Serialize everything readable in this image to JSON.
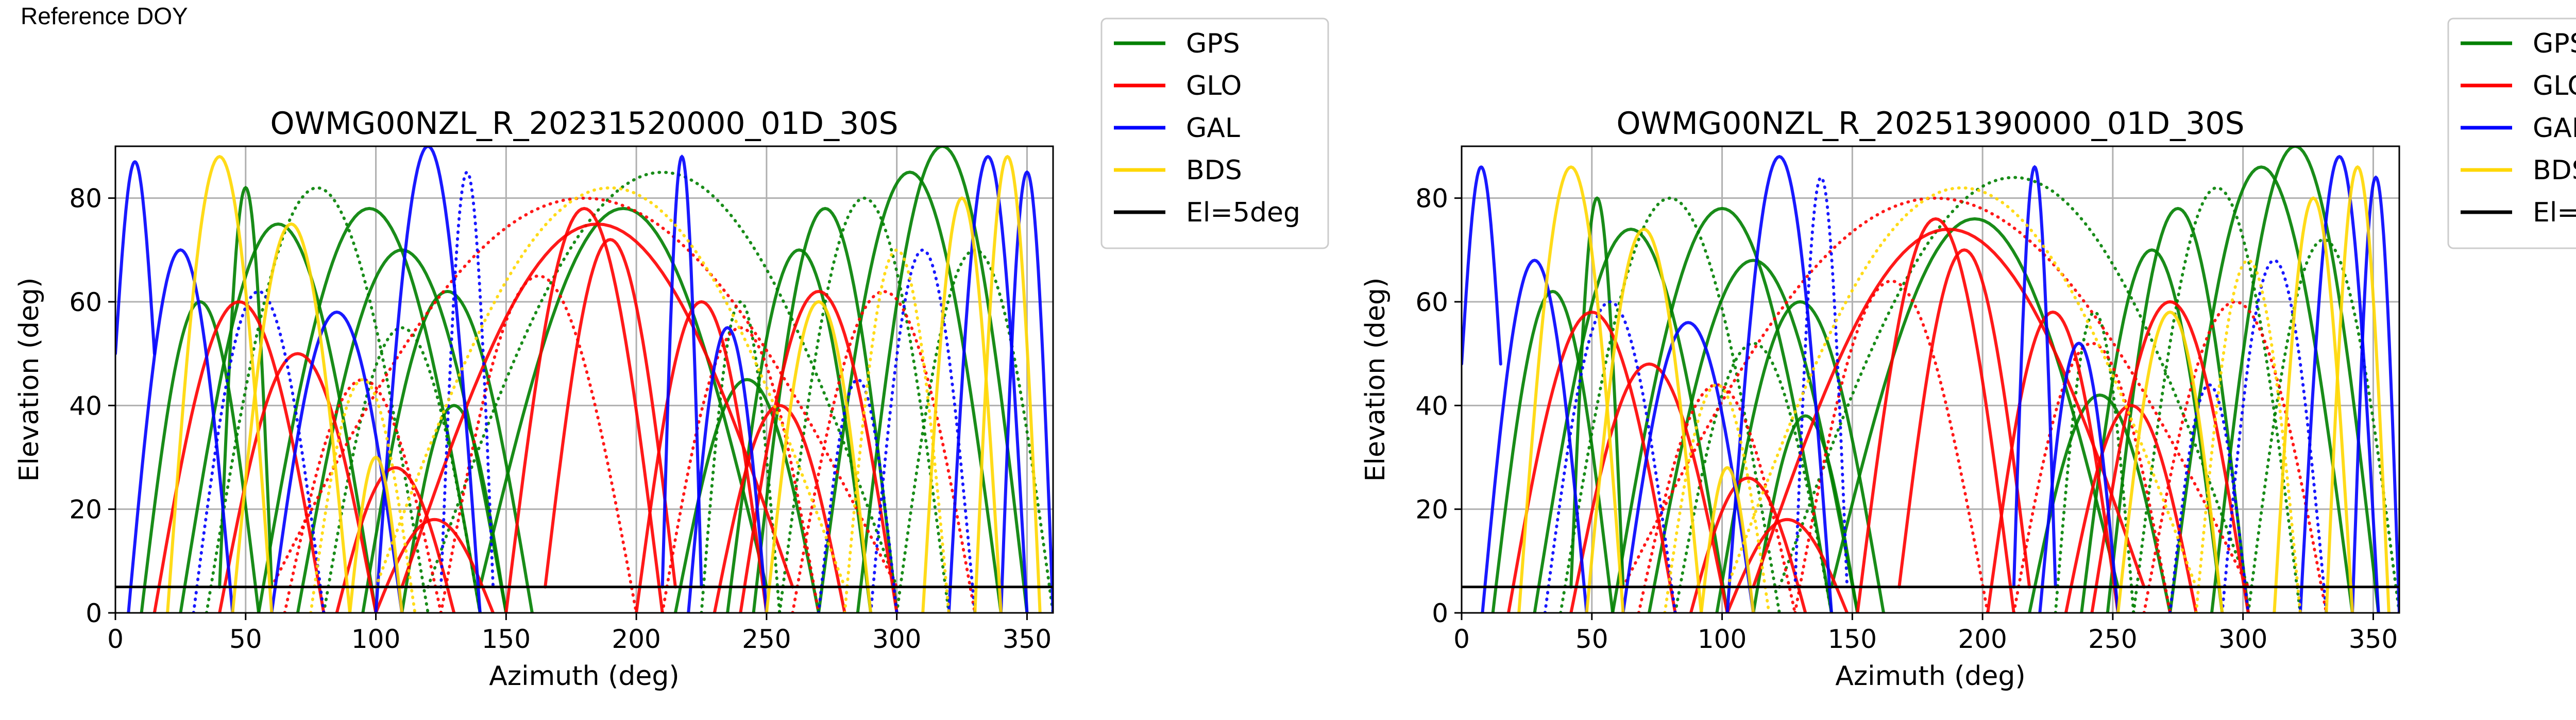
{
  "page": {
    "header": "Reference DOY"
  },
  "legend": {
    "entries": [
      {
        "label": "GPS",
        "color": "#008000"
      },
      {
        "label": "GLO",
        "color": "#ff0000"
      },
      {
        "label": "GAL",
        "color": "#0000ff"
      },
      {
        "label": "BDS",
        "color": "#ffd700"
      },
      {
        "label": "El=5deg",
        "color": "#000000"
      }
    ]
  },
  "chart_data": [
    {
      "type": "scatter",
      "title": "OWMG00NZL_R_20231520000_01D_30S",
      "xlabel": "Azimuth (deg)",
      "ylabel": "Elevation (deg)",
      "xlim": [
        0,
        360
      ],
      "ylim": [
        0,
        90
      ],
      "xticks": [
        0,
        50,
        100,
        150,
        200,
        250,
        300,
        350
      ],
      "yticks": [
        0,
        20,
        40,
        60,
        80
      ],
      "grid": true,
      "legend_position": "outside-right",
      "reference_line": {
        "label": "El=5deg",
        "y": 5
      },
      "series": [
        {
          "name": "GPS",
          "color": "#008000",
          "tracks": [
            [
              10,
              0,
              55,
              60
            ],
            [
              25,
              0,
              100,
              75
            ],
            [
              35,
              0,
              120,
              82
            ],
            [
              55,
              0,
              140,
              78
            ],
            [
              70,
              0,
              150,
              70
            ],
            [
              80,
              0,
              140,
              55
            ],
            [
              95,
              0,
              160,
              62
            ],
            [
              110,
              0,
              150,
              40
            ],
            [
              225,
              0,
              255,
              60
            ],
            [
              235,
              0,
              290,
              70
            ],
            [
              245,
              0,
              300,
              78
            ],
            [
              255,
              0,
              320,
              80
            ],
            [
              270,
              0,
              340,
              85
            ],
            [
              285,
              0,
              350,
              90
            ],
            [
              300,
              0,
              360,
              70
            ],
            [
              215,
              0,
              270,
              45
            ],
            [
              140,
              5,
              250,
              78
            ],
            [
              120,
              5,
              300,
              85
            ],
            [
              40,
              5,
              60,
              82
            ]
          ]
        },
        {
          "name": "GLO",
          "color": "#ff0000",
          "tracks": [
            [
              15,
              0,
              80,
              60
            ],
            [
              40,
              0,
              100,
              50
            ],
            [
              65,
              0,
              125,
              45
            ],
            [
              85,
              0,
              130,
              28
            ],
            [
              100,
              0,
              145,
              18
            ],
            [
              125,
              0,
              200,
              65
            ],
            [
              150,
              0,
              210,
              78
            ],
            [
              200,
              0,
              250,
              60
            ],
            [
              210,
              0,
              270,
              55
            ],
            [
              230,
              0,
              280,
              40
            ],
            [
              240,
              0,
              300,
              62
            ],
            [
              260,
              0,
              330,
              62
            ],
            [
              165,
              5,
              215,
              72
            ],
            [
              110,
              5,
              260,
              75
            ],
            [
              60,
              5,
              300,
              80
            ]
          ]
        },
        {
          "name": "GAL",
          "color": "#0000ff",
          "tracks": [
            [
              0,
              50,
              15,
              87
            ],
            [
              5,
              0,
              45,
              70
            ],
            [
              30,
              0,
              80,
              62
            ],
            [
              60,
              0,
              110,
              58
            ],
            [
              100,
              0,
              140,
              90
            ],
            [
              125,
              5,
              145,
              85
            ],
            [
              210,
              5,
              225,
              88
            ],
            [
              220,
              0,
              250,
              55
            ],
            [
              270,
              0,
              300,
              45
            ],
            [
              320,
              0,
              350,
              88
            ],
            [
              340,
              0,
              360,
              85
            ],
            [
              290,
              0,
              330,
              70
            ]
          ]
        },
        {
          "name": "BDS",
          "color": "#ffd700",
          "tracks": [
            [
              20,
              0,
              60,
              88
            ],
            [
              45,
              0,
              90,
              75
            ],
            [
              75,
              0,
              115,
              45
            ],
            [
              90,
              0,
              110,
              30
            ],
            [
              250,
              0,
              290,
              60
            ],
            [
              280,
              0,
              320,
              70
            ],
            [
              310,
              0,
              340,
              80
            ],
            [
              330,
              0,
              355,
              88
            ],
            [
              100,
              5,
              280,
              82
            ]
          ]
        }
      ]
    },
    {
      "type": "scatter",
      "title": "OWMG00NZL_R_20251390000_01D_30S",
      "xlabel": "Azimuth (deg)",
      "ylabel": "Elevation (deg)",
      "xlim": [
        0,
        360
      ],
      "ylim": [
        0,
        90
      ],
      "xticks": [
        0,
        50,
        100,
        150,
        200,
        250,
        300,
        350
      ],
      "yticks": [
        0,
        20,
        40,
        60,
        80
      ],
      "grid": true,
      "legend_position": "outside-right",
      "reference_line": {
        "label": "El=5deg",
        "y": 5
      },
      "series": [
        {
          "name": "GPS",
          "color": "#008000",
          "tracks": [
            [
              12,
              0,
              58,
              62
            ],
            [
              28,
              0,
              102,
              74
            ],
            [
              38,
              0,
              122,
              80
            ],
            [
              58,
              0,
              142,
              78
            ],
            [
              72,
              0,
              152,
              68
            ],
            [
              82,
              0,
              142,
              52
            ],
            [
              98,
              0,
              162,
              60
            ],
            [
              112,
              0,
              152,
              38
            ],
            [
              228,
              0,
              258,
              58
            ],
            [
              238,
              0,
              292,
              70
            ],
            [
              248,
              0,
              302,
              78
            ],
            [
              258,
              0,
              322,
              82
            ],
            [
              272,
              0,
              342,
              86
            ],
            [
              288,
              0,
              352,
              90
            ],
            [
              302,
              0,
              360,
              72
            ],
            [
              218,
              0,
              272,
              42
            ],
            [
              142,
              5,
              252,
              76
            ],
            [
              122,
              5,
              302,
              84
            ],
            [
              42,
              5,
              62,
              80
            ]
          ]
        },
        {
          "name": "GLO",
          "color": "#ff0000",
          "tracks": [
            [
              18,
              0,
              82,
              58
            ],
            [
              42,
              0,
              102,
              48
            ],
            [
              68,
              0,
              128,
              44
            ],
            [
              88,
              0,
              132,
              26
            ],
            [
              102,
              0,
              148,
              18
            ],
            [
              128,
              0,
              202,
              64
            ],
            [
              152,
              0,
              212,
              76
            ],
            [
              202,
              0,
              252,
              58
            ],
            [
              212,
              0,
              272,
              52
            ],
            [
              232,
              0,
              282,
              40
            ],
            [
              242,
              0,
              302,
              60
            ],
            [
              262,
              0,
              332,
              60
            ],
            [
              168,
              5,
              218,
              70
            ],
            [
              112,
              5,
              262,
              74
            ],
            [
              62,
              5,
              302,
              80
            ]
          ]
        },
        {
          "name": "GAL",
          "color": "#0000ff",
          "tracks": [
            [
              0,
              48,
              15,
              86
            ],
            [
              8,
              0,
              48,
              68
            ],
            [
              32,
              0,
              82,
              60
            ],
            [
              62,
              0,
              112,
              56
            ],
            [
              102,
              0,
              142,
              88
            ],
            [
              128,
              5,
              148,
              84
            ],
            [
              212,
              5,
              228,
              86
            ],
            [
              222,
              0,
              252,
              52
            ],
            [
              272,
              0,
              302,
              44
            ],
            [
              322,
              0,
              352,
              88
            ],
            [
              342,
              0,
              360,
              84
            ],
            [
              292,
              0,
              332,
              68
            ]
          ]
        },
        {
          "name": "BDS",
          "color": "#ffd700",
          "tracks": [
            [
              22,
              0,
              62,
              86
            ],
            [
              48,
              0,
              92,
              74
            ],
            [
              78,
              0,
              118,
              44
            ],
            [
              92,
              0,
              112,
              28
            ],
            [
              252,
              0,
              292,
              58
            ],
            [
              282,
              0,
              322,
              68
            ],
            [
              312,
              0,
              342,
              80
            ],
            [
              332,
              0,
              356,
              86
            ],
            [
              102,
              5,
              282,
              82
            ]
          ]
        }
      ]
    }
  ]
}
